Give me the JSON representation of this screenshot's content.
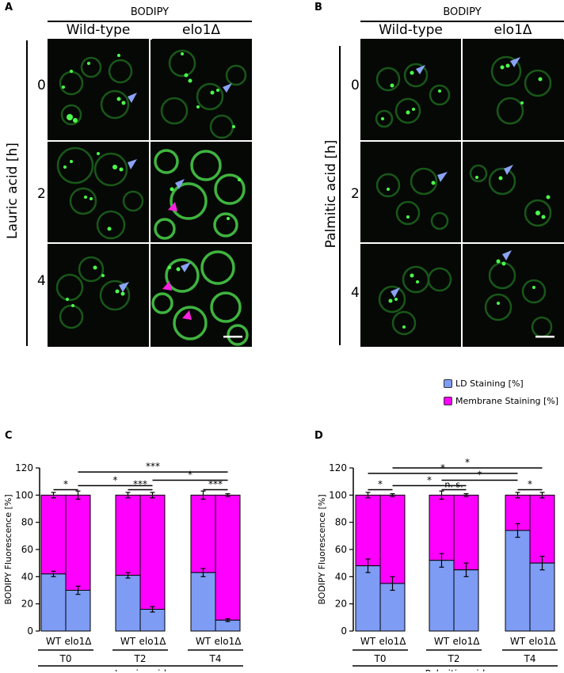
{
  "panels": {
    "A": "A",
    "B": "B",
    "C": "C",
    "D": "D"
  },
  "micro_A": {
    "stain": "BODIPY",
    "col_labels": [
      "Wild-type",
      "elo1Δ"
    ],
    "row_labels": [
      "0",
      "2",
      "4"
    ],
    "axis_label": "Lauric acid [h]"
  },
  "micro_B": {
    "stain": "BODIPY",
    "col_labels": [
      "Wild-type",
      "elo1Δ"
    ],
    "row_labels": [
      "0",
      "2",
      "4"
    ],
    "axis_label": "Palmitic acid [h]"
  },
  "legend": {
    "ld": {
      "label": "LD Staining [%]",
      "color": "#7e9cf4"
    },
    "membrane": {
      "label": "Membrane Staining [%]",
      "color": "#ff00ff"
    }
  },
  "chart_data": [
    {
      "type": "bar",
      "stacked": true,
      "ylabel": "BODIPY Fluorescence [%]",
      "xlabel": "Lauric acid",
      "ylim": [
        0,
        120
      ],
      "yticks": [
        "0",
        "20",
        "40",
        "60",
        "80",
        "100",
        "120"
      ],
      "categories": [
        "WT",
        "elo1Δ",
        "WT",
        "elo1Δ",
        "WT",
        "elo1Δ"
      ],
      "groups": [
        "T0",
        "T2",
        "T4"
      ],
      "series": [
        {
          "name": "LD Staining [%]",
          "values": [
            42,
            30,
            41,
            16,
            43,
            8
          ],
          "errors": [
            2,
            3,
            2,
            2,
            3,
            1
          ]
        },
        {
          "name": "Membrane Staining [%]",
          "values": [
            58,
            70,
            59,
            84,
            57,
            92
          ],
          "errors": [
            2,
            3,
            2,
            2,
            3,
            1
          ]
        }
      ],
      "significance": [
        {
          "from": 0,
          "to": 1,
          "label": "*",
          "y": 104
        },
        {
          "from": 2,
          "to": 3,
          "label": "***",
          "y": 104
        },
        {
          "from": 4,
          "to": 5,
          "label": "***",
          "y": 104
        },
        {
          "from": 1,
          "to": 3,
          "label": "*",
          "y": 107
        },
        {
          "from": 3,
          "to": 5,
          "label": "*",
          "y": 111
        },
        {
          "from": 1,
          "to": 5,
          "label": "***",
          "y": 117
        }
      ]
    },
    {
      "type": "bar",
      "stacked": true,
      "ylabel": "BODIPY Fluorescence [%]",
      "xlabel": "Palmitic acid",
      "ylim": [
        0,
        120
      ],
      "yticks": [
        "0",
        "20",
        "40",
        "60",
        "80",
        "100",
        "120"
      ],
      "categories": [
        "WT",
        "elo1Δ",
        "WT",
        "elo1Δ",
        "WT",
        "elo1Δ"
      ],
      "groups": [
        "T0",
        "T2",
        "T4"
      ],
      "series": [
        {
          "name": "LD Staining [%]",
          "values": [
            48,
            35,
            52,
            45,
            74,
            50
          ],
          "errors": [
            5,
            5,
            5,
            5,
            5,
            5
          ]
        },
        {
          "name": "Membrane Staining [%]",
          "values": [
            52,
            65,
            48,
            55,
            26,
            50
          ],
          "errors": [
            2,
            1,
            3,
            1,
            2,
            2
          ]
        }
      ],
      "significance": [
        {
          "from": 0,
          "to": 1,
          "label": "*",
          "y": 104
        },
        {
          "from": 2,
          "to": 3,
          "label": "n. s.",
          "y": 104
        },
        {
          "from": 4,
          "to": 5,
          "label": "*",
          "y": 104
        },
        {
          "from": 1,
          "to": 3,
          "label": "*",
          "y": 107
        },
        {
          "from": 2,
          "to": 4,
          "label": "*",
          "y": 111
        },
        {
          "from": 0,
          "to": 4,
          "label": "*",
          "y": 116
        },
        {
          "from": 1,
          "to": 5,
          "label": "*",
          "y": 120
        }
      ]
    }
  ]
}
